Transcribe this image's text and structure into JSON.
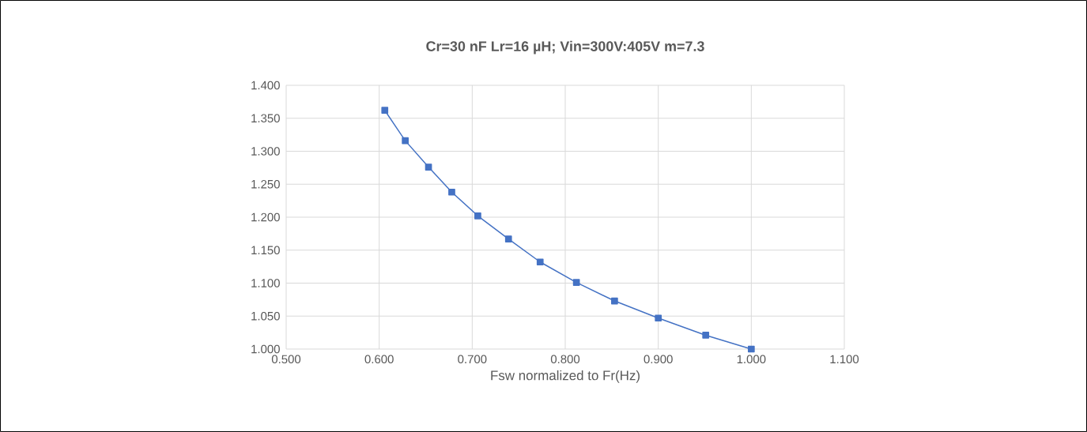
{
  "chart_data": {
    "type": "line",
    "title": "Cr=30 nF Lr=16 µH; Vin=300V:405V m=7.3",
    "xlabel": "Fsw normalized to Fr(Hz)",
    "x": [
      0.606,
      0.628,
      0.653,
      0.678,
      0.706,
      0.739,
      0.773,
      0.812,
      0.853,
      0.9,
      0.951,
      1.0
    ],
    "series": [
      {
        "color": "#4472c4",
        "values": [
          1.362,
          1.316,
          1.276,
          1.238,
          1.202,
          1.167,
          1.132,
          1.101,
          1.073,
          1.047,
          1.021,
          1.0
        ]
      }
    ],
    "xlim": [
      0.5,
      1.1
    ],
    "ylim": [
      1.0,
      1.4
    ],
    "xticks": [
      {
        "value": 0.5,
        "label": "0.500"
      },
      {
        "value": 0.6,
        "label": "0.600"
      },
      {
        "value": 0.7,
        "label": "0.700"
      },
      {
        "value": 0.8,
        "label": "0.800"
      },
      {
        "value": 0.9,
        "label": "0.900"
      },
      {
        "value": 1.0,
        "label": "1.000"
      },
      {
        "value": 1.1,
        "label": "1.100"
      }
    ],
    "yticks": [
      {
        "value": 1.0,
        "label": "1.000"
      },
      {
        "value": 1.05,
        "label": "1.050"
      },
      {
        "value": 1.1,
        "label": "1.100"
      },
      {
        "value": 1.15,
        "label": "1.150"
      },
      {
        "value": 1.2,
        "label": "1.200"
      },
      {
        "value": 1.25,
        "label": "1.250"
      },
      {
        "value": 1.3,
        "label": "1.300"
      },
      {
        "value": 1.35,
        "label": "1.350"
      },
      {
        "value": 1.4,
        "label": "1.400"
      }
    ],
    "grid": true,
    "marker": "square",
    "line_style": "solid"
  }
}
